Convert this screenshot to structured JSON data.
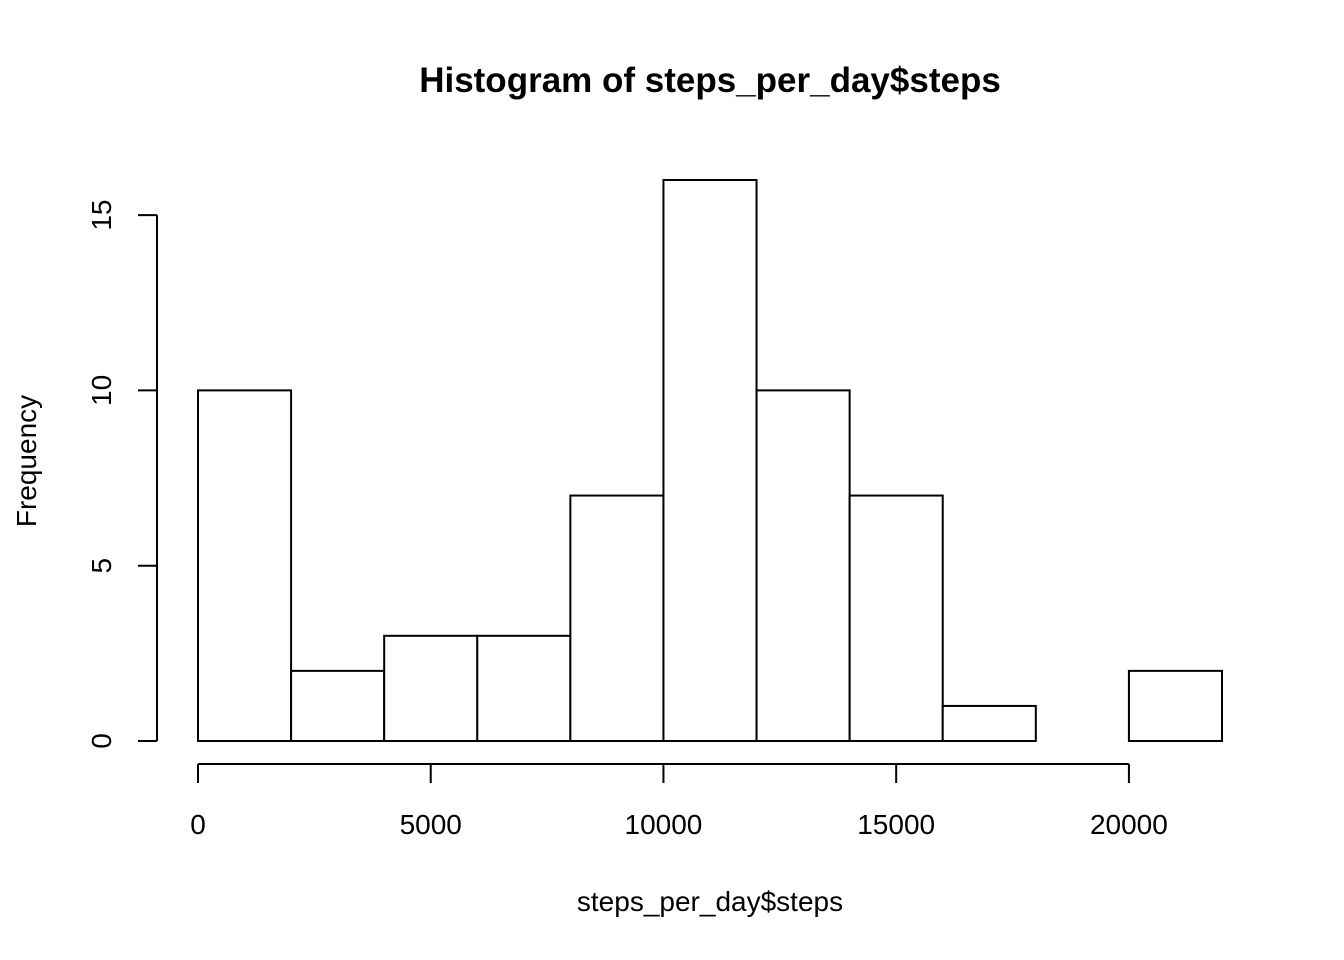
{
  "chart_data": {
    "type": "bar",
    "subtype": "histogram",
    "title": "Histogram of steps_per_day$steps",
    "xlabel": "steps_per_day$steps",
    "ylabel": "Frequency",
    "bin_edges": [
      0,
      2000,
      4000,
      6000,
      8000,
      10000,
      12000,
      14000,
      16000,
      18000,
      20000,
      22000
    ],
    "values": [
      10,
      2,
      3,
      3,
      7,
      16,
      10,
      7,
      1,
      0,
      2
    ],
    "xlim": [
      0,
      22000
    ],
    "ylim": [
      0,
      16
    ],
    "x_ticks": [
      0,
      5000,
      10000,
      15000,
      20000
    ],
    "x_tick_labels": [
      "0",
      "5000",
      "10000",
      "15000",
      "20000"
    ],
    "y_ticks": [
      0,
      5,
      10,
      15
    ],
    "y_tick_labels": [
      "0",
      "5",
      "10",
      "15"
    ],
    "grid": false,
    "legend": "none",
    "colors": {
      "bar_fill": "#ffffff",
      "bar_stroke": "#000000",
      "text": "#000000"
    }
  }
}
